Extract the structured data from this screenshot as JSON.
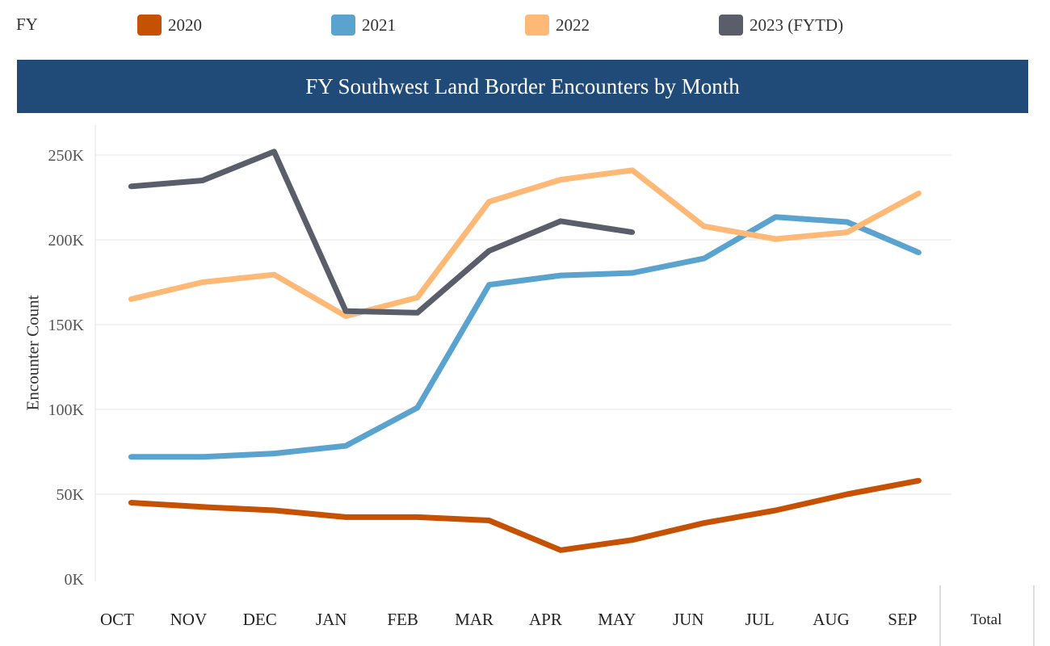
{
  "legend": {
    "title": "FY",
    "items": [
      {
        "label": "2020",
        "color": "#c75102"
      },
      {
        "label": "2021",
        "color": "#5ba3cf"
      },
      {
        "label": "2022",
        "color": "#feb977"
      },
      {
        "label": "2023 (FYTD)",
        "color": "#5a5e6b"
      }
    ]
  },
  "chart_data": {
    "type": "line",
    "title": "FY Southwest Land Border Encounters by Month",
    "xlabel": "",
    "ylabel": "Encounter Count",
    "categories": [
      "OCT",
      "NOV",
      "DEC",
      "JAN",
      "FEB",
      "MAR",
      "APR",
      "MAY",
      "JUN",
      "JUL",
      "AUG",
      "SEP"
    ],
    "extra_column": "Total",
    "ylim": [
      0,
      260000
    ],
    "yticks": [
      0,
      50000,
      100000,
      150000,
      200000,
      250000
    ],
    "ytick_labels": [
      "0K",
      "50K",
      "100K",
      "150K",
      "200K",
      "250K"
    ],
    "grid": true,
    "series": [
      {
        "name": "2020",
        "color": "#c75102",
        "values": [
          45000,
          42500,
          40500,
          36500,
          36500,
          34500,
          17000,
          23000,
          33000,
          40500,
          50000,
          58000
        ]
      },
      {
        "name": "2021",
        "color": "#5ba3cf",
        "values": [
          72000,
          72000,
          74000,
          78500,
          101000,
          173500,
          179000,
          180500,
          189000,
          213500,
          210500,
          192500
        ]
      },
      {
        "name": "2022",
        "color": "#feb977",
        "values": [
          165000,
          175000,
          179500,
          155000,
          166000,
          222500,
          235500,
          241000,
          208000,
          200500,
          204500,
          227500
        ]
      },
      {
        "name": "2023 (FYTD)",
        "color": "#5a5e6b",
        "values": [
          231500,
          235000,
          252000,
          158000,
          157000,
          193500,
          211000,
          204500,
          null,
          null,
          null,
          null
        ]
      }
    ]
  }
}
